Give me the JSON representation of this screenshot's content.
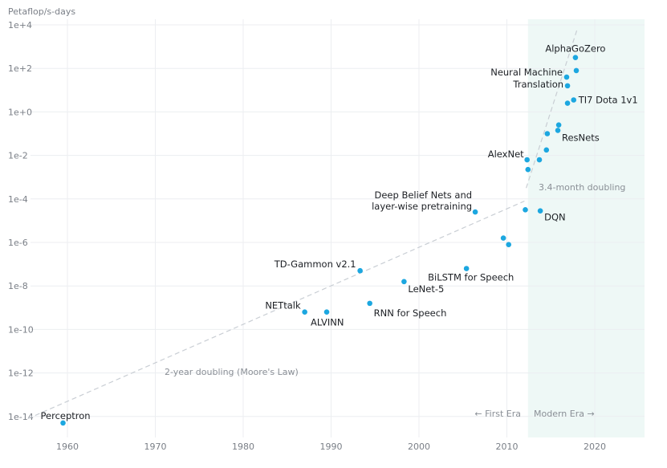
{
  "chart_data": {
    "type": "scatter",
    "ylabel": "Petaflop/s-days",
    "y_scale": "log",
    "ylim": [
      "1e-15",
      "1e+4"
    ],
    "xlim": [
      1955,
      2026
    ],
    "x_ticks": [
      {
        "value": 1960,
        "label": "1960"
      },
      {
        "value": 1970,
        "label": "1970"
      },
      {
        "value": 1980,
        "label": "1980"
      },
      {
        "value": 1990,
        "label": "1990"
      },
      {
        "value": 2000,
        "label": "2000"
      },
      {
        "value": 2010,
        "label": "2010"
      },
      {
        "value": 2020,
        "label": "2020"
      }
    ],
    "y_ticks": [
      {
        "exp": 4,
        "label": "1e+4"
      },
      {
        "exp": 2,
        "label": "1e+2"
      },
      {
        "exp": 0,
        "label": "1e+0"
      },
      {
        "exp": -2,
        "label": "1e-2"
      },
      {
        "exp": -4,
        "label": "1e-4"
      },
      {
        "exp": -6,
        "label": "1e-6"
      },
      {
        "exp": -8,
        "label": "1e-8"
      },
      {
        "exp": -10,
        "label": "1e-10"
      },
      {
        "exp": -12,
        "label": "1e-12"
      },
      {
        "exp": -14,
        "label": "1e-14"
      }
    ],
    "grid": true,
    "point_color": "#1ca7e0",
    "modern_era_shade": "#eef8f6",
    "modern_era_start": 2012.4,
    "points": [
      {
        "year": 1959.5,
        "log10_pfs_days": -14.3,
        "label": "Perceptron"
      },
      {
        "year": 1987.0,
        "log10_pfs_days": -9.2,
        "label": "NETtalk"
      },
      {
        "year": 1989.5,
        "log10_pfs_days": -9.2,
        "label": "ALVINN"
      },
      {
        "year": 1993.3,
        "log10_pfs_days": -7.3,
        "label": "TD-Gammon v2.1"
      },
      {
        "year": 1994.4,
        "log10_pfs_days": -8.8,
        "label": "RNN for Speech"
      },
      {
        "year": 1998.3,
        "log10_pfs_days": -7.8,
        "label": "LeNet-5"
      },
      {
        "year": 2005.4,
        "log10_pfs_days": -7.2,
        "label": "BiLSTM for Speech"
      },
      {
        "year": 2006.4,
        "log10_pfs_days": -4.6,
        "label": "Deep Belief Nets and layer-wise pretraining"
      },
      {
        "year": 2009.6,
        "log10_pfs_days": -5.8,
        "label": ""
      },
      {
        "year": 2010.2,
        "log10_pfs_days": -6.1,
        "label": ""
      },
      {
        "year": 2012.1,
        "log10_pfs_days": -4.5,
        "label": ""
      },
      {
        "year": 2012.3,
        "log10_pfs_days": -2.2,
        "label": "AlexNet"
      },
      {
        "year": 2012.4,
        "log10_pfs_days": -2.65,
        "label": ""
      },
      {
        "year": 2013.8,
        "log10_pfs_days": -4.55,
        "label": "DQN"
      },
      {
        "year": 2013.7,
        "log10_pfs_days": -2.2,
        "label": ""
      },
      {
        "year": 2014.5,
        "log10_pfs_days": -1.75,
        "label": ""
      },
      {
        "year": 2014.6,
        "log10_pfs_days": -1.0,
        "label": ""
      },
      {
        "year": 2015.8,
        "log10_pfs_days": -0.85,
        "label": "ResNets"
      },
      {
        "year": 2015.9,
        "log10_pfs_days": -0.6,
        "label": ""
      },
      {
        "year": 2016.8,
        "log10_pfs_days": 1.6,
        "label": "Neural Machine"
      },
      {
        "year": 2016.9,
        "log10_pfs_days": 1.2,
        "label": "Translation"
      },
      {
        "year": 2016.9,
        "log10_pfs_days": 0.4,
        "label": ""
      },
      {
        "year": 2017.6,
        "log10_pfs_days": 0.55,
        "label": "TI7 Dota 1v1"
      },
      {
        "year": 2017.8,
        "log10_pfs_days": 2.5,
        "label": "AlphaGoZero"
      },
      {
        "year": 2017.9,
        "log10_pfs_days": 1.9,
        "label": ""
      }
    ],
    "trend_lines": [
      {
        "name": "2-year doubling (Moore's Law)",
        "from": {
          "year": 1955.5,
          "log10_pfs_days": -14.1
        },
        "to": {
          "year": 2012.0,
          "log10_pfs_days": -4.1
        }
      },
      {
        "name": "3.4-month doubling",
        "from": {
          "year": 2012.2,
          "log10_pfs_days": -3.5
        },
        "to": {
          "year": 2018.0,
          "log10_pfs_days": 3.8
        }
      }
    ],
    "annotations": [
      {
        "text": "2-year doubling (Moore's Law)"
      },
      {
        "text": "3.4-month doubling"
      },
      {
        "text": "← First Era"
      },
      {
        "text": "Modern Era →"
      }
    ]
  }
}
